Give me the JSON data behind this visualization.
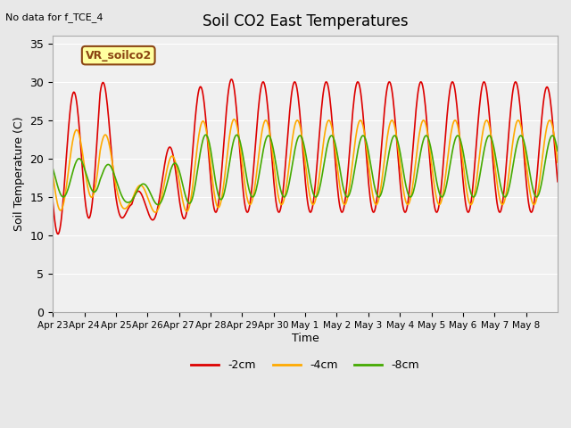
{
  "title": "Soil CO2 East Temperatures",
  "no_data_label": "No data for f_TCE_4",
  "box_label": "VR_soilco2",
  "xlabel": "Time",
  "ylabel": "Soil Temperature (C)",
  "ylim": [
    0,
    36
  ],
  "yticks": [
    0,
    5,
    10,
    15,
    20,
    25,
    30,
    35
  ],
  "x_tick_labels": [
    "Apr 23",
    "Apr 24",
    "Apr 25",
    "Apr 26",
    "Apr 27",
    "Apr 28",
    "Apr 29",
    "Apr 30",
    "May 1",
    "May 2",
    "May 3",
    "May 4",
    "May 5",
    "May 6",
    "May 7",
    "May 8"
  ],
  "bg_color": "#e8e8e8",
  "plot_bg_color": "#f0f0f0",
  "line_colors": {
    "2cm": "#dd0000",
    "4cm": "#ffaa00",
    "8cm": "#44aa00"
  },
  "legend_labels": [
    "-2cm",
    "-4cm",
    "-8cm"
  ],
  "legend_colors": [
    "#dd0000",
    "#ffaa00",
    "#44aa00"
  ]
}
